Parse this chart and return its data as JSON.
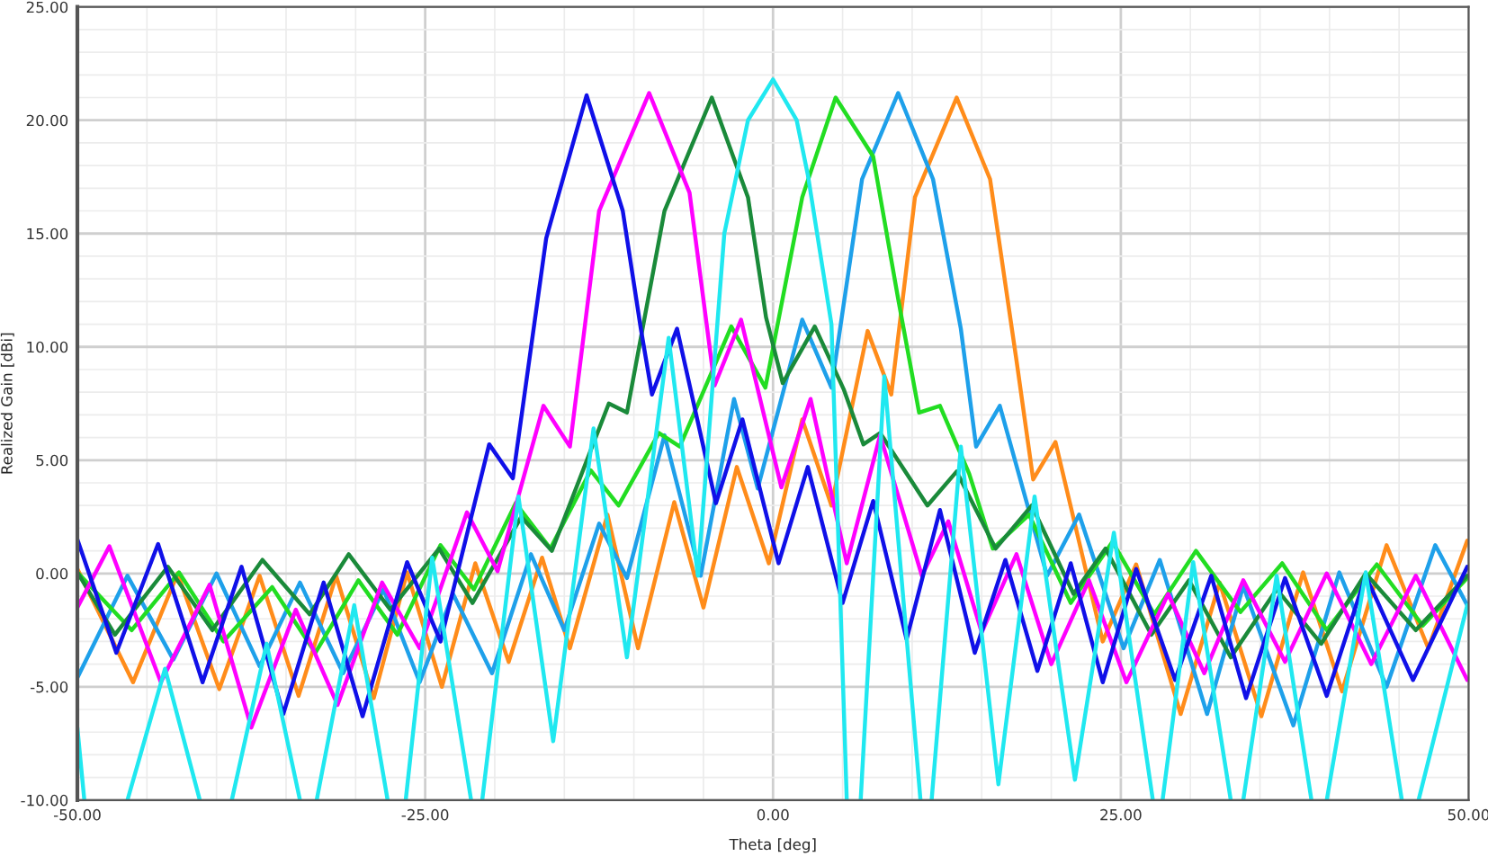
{
  "chart_data": {
    "type": "line",
    "xlabel": "Theta [deg]",
    "ylabel": "Realized Gain [dBi]",
    "xlim": [
      -50,
      50
    ],
    "ylim": [
      -10,
      25
    ],
    "xticks": [
      {
        "value": -50,
        "label": "-50.00"
      },
      {
        "value": -25,
        "label": "-25.00"
      },
      {
        "value": 0,
        "label": "0.00"
      },
      {
        "value": 25,
        "label": "25.00"
      },
      {
        "value": 50,
        "label": "50.00"
      }
    ],
    "yticks": [
      {
        "value": -10,
        "label": "-10.00"
      },
      {
        "value": -5,
        "label": "-5.00"
      },
      {
        "value": 0,
        "label": "0.00"
      },
      {
        "value": 5,
        "label": "5.00"
      },
      {
        "value": 10,
        "label": "10.00"
      },
      {
        "value": 15,
        "label": "15.00"
      },
      {
        "value": 20,
        "label": "20.00"
      },
      {
        "value": 25,
        "label": "25.00"
      }
    ],
    "grid": true,
    "legend": false,
    "marker": "none",
    "line_style": "solid",
    "series": [
      {
        "color": "#ff8c1a",
        "x": [
          -50,
          -46.0,
          -42.8,
          -39.8,
          -36.9,
          -34.1,
          -31.4,
          -28.7,
          -26.3,
          -23.8,
          -21.4,
          -19.0,
          -16.6,
          -14.6,
          -11.9,
          -9.7,
          -7.1,
          -5.0,
          -2.6,
          -0.3,
          2.1,
          4.2,
          6.8,
          8.5,
          10.2,
          13.2,
          15.6,
          17.5,
          18.7,
          20.3,
          23.7,
          26.1,
          29.3,
          32.1,
          35.1,
          38.1,
          40.9,
          44.1,
          47.1,
          49.9
        ],
        "values": [
          0.2,
          -4.8,
          0.0,
          -5.1,
          -0.1,
          -5.4,
          -0.1,
          -5.5,
          0.05,
          -5.0,
          0.45,
          -3.9,
          0.7,
          -3.3,
          2.6,
          -3.3,
          3.15,
          -1.5,
          4.7,
          0.45,
          6.8,
          3.0,
          10.7,
          7.9,
          16.6,
          21.0,
          17.4,
          9.4,
          4.15,
          5.8,
          -3.0,
          0.4,
          -6.2,
          -0.4,
          -6.3,
          0.05,
          -5.2,
          1.25,
          -3.3,
          1.45
        ]
      },
      {
        "color": "#1ea0ea",
        "x": [
          -50,
          -46.4,
          -43.1,
          -40.0,
          -36.9,
          -34.0,
          -30.9,
          -28.0,
          -25.4,
          -23.0,
          -20.2,
          -17.4,
          -15.0,
          -12.5,
          -10.5,
          -7.8,
          -5.2,
          -2.8,
          -1.1,
          2.1,
          4.2,
          6.4,
          9.0,
          11.5,
          13.5,
          14.6,
          16.3,
          19.7,
          22.0,
          25.2,
          27.8,
          31.2,
          33.8,
          37.4,
          40.7,
          44.1,
          47.6,
          49.9
        ],
        "values": [
          -4.6,
          -0.1,
          -3.8,
          0.0,
          -4.1,
          -0.4,
          -4.4,
          -0.7,
          -4.8,
          -0.9,
          -4.4,
          0.85,
          -2.5,
          2.2,
          -0.2,
          6.1,
          -0.1,
          7.7,
          3.75,
          11.2,
          8.2,
          17.4,
          21.2,
          17.4,
          10.8,
          5.6,
          7.4,
          -0.1,
          2.6,
          -3.3,
          0.6,
          -6.2,
          -0.55,
          -6.7,
          0.05,
          -5.0,
          1.25,
          -1.4
        ]
      },
      {
        "color": "#22dd22",
        "x": [
          -50,
          -46.1,
          -42.7,
          -39.5,
          -36.0,
          -32.9,
          -29.8,
          -27.0,
          -23.9,
          -21.5,
          -18.5,
          -16.0,
          -13.1,
          -11.1,
          -8.2,
          -6.7,
          -3.0,
          -0.55,
          2.1,
          4.5,
          7.2,
          9.0,
          10.5,
          12.0,
          14.1,
          15.8,
          18.4,
          21.4,
          24.4,
          27.4,
          30.4,
          33.6,
          36.6,
          39.8,
          43.4,
          46.7,
          49.9
        ],
        "values": [
          0.05,
          -2.5,
          0.05,
          -3.0,
          -0.6,
          -3.5,
          -0.3,
          -2.7,
          1.25,
          -0.7,
          3.1,
          1.1,
          4.55,
          3.0,
          6.2,
          5.6,
          10.9,
          8.2,
          16.6,
          21.0,
          18.4,
          12.1,
          7.1,
          7.4,
          4.4,
          1.1,
          2.6,
          -1.3,
          1.4,
          -1.8,
          1.0,
          -1.7,
          0.45,
          -2.5,
          0.4,
          -2.3,
          -0.2
        ]
      },
      {
        "color": "#1a8a3a",
        "x": [
          -50,
          -47.3,
          -43.5,
          -40.3,
          -36.7,
          -33.3,
          -30.5,
          -27.5,
          -24.0,
          -21.6,
          -18.1,
          -15.9,
          -11.8,
          -10.5,
          -7.8,
          -4.4,
          -1.8,
          -0.5,
          0.7,
          3.0,
          5.1,
          6.5,
          7.7,
          11.1,
          13.2,
          16.0,
          18.6,
          21.6,
          23.9,
          27.2,
          29.9,
          32.9,
          36.2,
          39.4,
          42.6,
          46.2,
          49.9
        ],
        "values": [
          0.05,
          -2.7,
          0.3,
          -2.5,
          0.6,
          -1.8,
          0.85,
          -1.6,
          1.1,
          -1.3,
          2.5,
          1.0,
          7.5,
          7.1,
          16.0,
          21.0,
          16.6,
          11.3,
          8.4,
          10.9,
          8.1,
          5.7,
          6.2,
          3.0,
          4.5,
          1.1,
          3.0,
          -0.9,
          1.1,
          -2.7,
          -0.3,
          -3.7,
          -0.7,
          -3.1,
          0.0,
          -2.5,
          -0.1
        ]
      },
      {
        "color": "#ff00ff",
        "x": [
          -50,
          -47.7,
          -44.0,
          -40.5,
          -37.5,
          -34.3,
          -31.3,
          -28.1,
          -25.4,
          -22.0,
          -19.8,
          -16.5,
          -14.6,
          -12.5,
          -8.9,
          -6.0,
          -4.2,
          -2.3,
          0.6,
          2.7,
          5.3,
          7.7,
          10.7,
          12.6,
          15.0,
          17.5,
          20.0,
          22.7,
          25.4,
          28.4,
          31.0,
          33.8,
          36.8,
          39.8,
          43.0,
          46.2,
          49.9
        ],
        "values": [
          -1.5,
          1.2,
          -4.8,
          -0.5,
          -6.8,
          -1.6,
          -5.8,
          -0.4,
          -3.3,
          2.7,
          0.1,
          7.4,
          5.6,
          16.0,
          21.2,
          16.8,
          8.3,
          11.2,
          3.8,
          7.7,
          0.45,
          6.1,
          -0.1,
          2.3,
          -2.6,
          0.85,
          -4.0,
          -0.3,
          -4.8,
          -0.9,
          -4.4,
          -0.3,
          -3.9,
          0.0,
          -4.0,
          -0.1,
          -4.7
        ]
      },
      {
        "color": "#1010e8",
        "x": [
          -50,
          -47.2,
          -44.2,
          -41.0,
          -38.2,
          -35.2,
          -32.3,
          -29.5,
          -26.3,
          -23.9,
          -20.4,
          -18.7,
          -16.3,
          -13.4,
          -10.8,
          -9.5,
          -8.7,
          -6.9,
          -4.1,
          -2.2,
          0.4,
          2.5,
          5.0,
          7.2,
          9.6,
          12.0,
          14.5,
          16.7,
          19.0,
          21.4,
          23.7,
          26.1,
          28.9,
          31.5,
          34.0,
          36.8,
          39.8,
          42.6,
          46.0,
          49.9
        ],
        "values": [
          1.5,
          -3.5,
          1.3,
          -4.8,
          0.3,
          -6.2,
          -0.4,
          -6.3,
          0.5,
          -3.0,
          5.7,
          4.2,
          14.8,
          21.1,
          16.0,
          10.8,
          7.9,
          10.8,
          3.1,
          6.8,
          0.45,
          4.7,
          -1.3,
          3.2,
          -2.9,
          2.8,
          -3.5,
          0.6,
          -4.3,
          0.45,
          -4.8,
          0.2,
          -4.7,
          -0.1,
          -5.5,
          -0.2,
          -5.4,
          -0.1,
          -4.7,
          0.3
        ]
      },
      {
        "color": "#20e8f0",
        "x": [
          -50,
          -49.5,
          -48.0,
          -46.4,
          -43.7,
          -41.2,
          -40.0,
          -38.9,
          -36.4,
          -34.0,
          -33.4,
          -32.8,
          -30.1,
          -27.7,
          -27.0,
          -26.4,
          -24.5,
          -21.7,
          -21.3,
          -20.9,
          -18.3,
          -15.8,
          -12.9,
          -10.5,
          -7.5,
          -5.4,
          -3.5,
          -1.8,
          0,
          1.7,
          2.5,
          4.2,
          5.3,
          5.8,
          6.3,
          8.0,
          10.6,
          11.0,
          11.4,
          13.5,
          16.2,
          18.8,
          21.7,
          24.5,
          27.3,
          27.6,
          28.0,
          30.2,
          32.9,
          33.3,
          33.8,
          36.2,
          38.7,
          39.2,
          39.8,
          42.6,
          45.2,
          45.8,
          46.4,
          49.9
        ],
        "values": [
          -6.8,
          -10,
          null,
          -10,
          -4.2,
          -10,
          null,
          -10,
          -3.1,
          -10,
          null,
          -10,
          -1.4,
          -10,
          null,
          -10,
          0.7,
          -10,
          null,
          -10,
          3.4,
          -7.4,
          6.4,
          -3.7,
          10.4,
          -0.1,
          15.0,
          20.0,
          21.8,
          20.0,
          17.6,
          11.0,
          -10,
          null,
          -10,
          8.7,
          -10,
          null,
          -10,
          5.6,
          -9.3,
          3.4,
          -9.1,
          1.8,
          -10,
          null,
          -10,
          0.5,
          -10,
          null,
          -10,
          -0.1,
          -10,
          null,
          -10,
          0.05,
          -10,
          null,
          -10,
          -1.4
        ]
      }
    ]
  }
}
